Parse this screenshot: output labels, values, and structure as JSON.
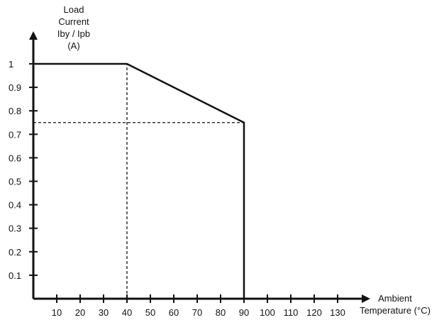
{
  "chart_data": {
    "type": "line",
    "ylabel_lines": [
      "Load",
      "Current",
      "Iby / Ipb",
      "(A)"
    ],
    "xlabel_lines": [
      "Ambient",
      "Temperature (°C)"
    ],
    "x_ticks": [
      10,
      20,
      30,
      40,
      50,
      60,
      70,
      80,
      90,
      100,
      110,
      120,
      130
    ],
    "y_ticks": [
      0.1,
      0.2,
      0.3,
      0.4,
      0.5,
      0.6,
      0.7,
      0.8,
      0.9,
      1
    ],
    "xlim": [
      0,
      140
    ],
    "ylim": [
      0,
      1.1
    ],
    "series": [
      {
        "points": [
          {
            "x": 0,
            "y": 1
          },
          {
            "x": 40,
            "y": 1
          },
          {
            "x": 90,
            "y": 0.75
          },
          {
            "x": 90,
            "y": 0
          }
        ]
      }
    ],
    "reference_lines": [
      {
        "style": "dashed",
        "from": {
          "x": 40,
          "y": 0
        },
        "to": {
          "x": 40,
          "y": 1
        }
      },
      {
        "style": "dashed",
        "from": {
          "x": 0,
          "y": 0.75
        },
        "to": {
          "x": 90,
          "y": 0.75
        }
      }
    ],
    "grid": false,
    "colors": {
      "line": "#111111",
      "axis": "#111111"
    }
  }
}
